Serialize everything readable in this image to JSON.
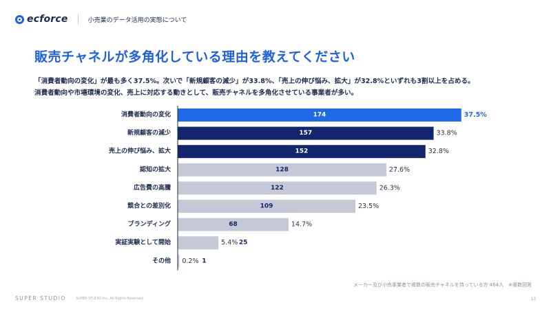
{
  "header": {
    "logo_text": "ecforce",
    "subtitle": "小売業のデータ活用の実態について"
  },
  "title": "販売チャネルが多角化している理由を教えてください",
  "summary": [
    "「消費者動向の変化」が最も多く37.5%。次いで「新規顧客の減少」が33.8%、「売上の伸び悩み、拡大」が32.8%といずれも3割以上を占める。",
    "消費者動向や市場環境の変化、売上に対応する動きとして、販売チャネルを多角化させている事業者が多い。"
  ],
  "chart_data": {
    "type": "bar",
    "orientation": "horizontal",
    "categories": [
      "消費者動向の変化",
      "新規顧客の減少",
      "売上の伸び悩み、拡大",
      "認知の拡大",
      "広告費の高騰",
      "競合との差別化",
      "ブランディング",
      "実証実験として開始",
      "その他"
    ],
    "values": [
      174,
      157,
      152,
      128,
      122,
      109,
      68,
      25,
      1
    ],
    "percent_labels": [
      "37.5%",
      "33.8%",
      "32.8%",
      "27.6%",
      "26.3%",
      "23.5%",
      "14.7%",
      "5.4%",
      "0.2%"
    ],
    "xlim": [
      0,
      180
    ],
    "grid": false,
    "colors": {
      "top": "#1f6ae8",
      "highlight": "#13256b",
      "other": "#c5c8d6",
      "top_percent": "#1f6ae8",
      "percent": "#2a3347",
      "count_on_dark": "#ffffff",
      "count_on_light": "#13256b"
    }
  },
  "footnote": "メーカー及び小売事業者で複数の販売チャネルを持っている方 464人　※複数回答",
  "footer": {
    "brand": "SUPER STUDIO",
    "copyright": "SUPER STUDIO Inc. All Rights Reserved",
    "page_number": "13"
  }
}
